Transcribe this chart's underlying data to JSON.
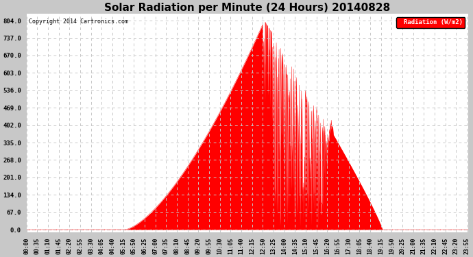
{
  "title": "Solar Radiation per Minute (24 Hours) 20140828",
  "title_fontsize": 11,
  "copyright_text": "Copyright 2014 Cartronics.com",
  "legend_label": "Radiation (W/m2)",
  "background_color": "#c8c8c8",
  "plot_background_color": "#ffffff",
  "fill_color": "#ff0000",
  "line_color": "#ff0000",
  "dashed_line_color": "#ff0000",
  "grid_color": "#c8c8c8",
  "yticks": [
    0.0,
    67.0,
    134.0,
    201.0,
    268.0,
    335.0,
    402.0,
    469.0,
    536.0,
    603.0,
    670.0,
    737.0,
    804.0
  ],
  "ylim": [
    -10,
    830
  ],
  "total_minutes": 1440,
  "sunrise_minute": 320,
  "sunset_minute": 1160,
  "peak_minute": 775,
  "peak_value": 804.0,
  "xtick_interval": 35,
  "figwidth": 6.9,
  "figheight": 3.75,
  "dpi": 100
}
